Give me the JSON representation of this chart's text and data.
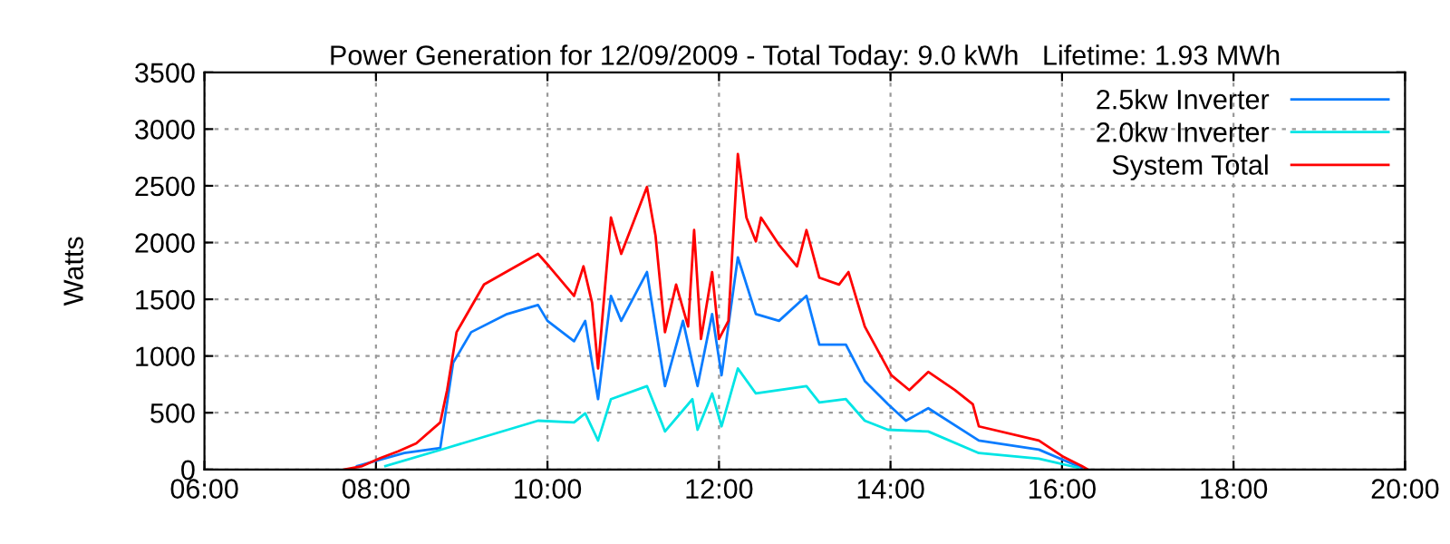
{
  "chart_data": {
    "type": "line",
    "title": "Power Generation for 12/09/2009 - Total Today: 9.0 kWh   Lifetime: 1.93 MWh",
    "ylabel": "Watts",
    "xlim": [
      6,
      20
    ],
    "xticks": [
      {
        "value": 6,
        "label": "06:00"
      },
      {
        "value": 8,
        "label": "08:00"
      },
      {
        "value": 10,
        "label": "10:00"
      },
      {
        "value": 12,
        "label": "12:00"
      },
      {
        "value": 14,
        "label": "14:00"
      },
      {
        "value": 16,
        "label": "16:00"
      },
      {
        "value": 18,
        "label": "18:00"
      },
      {
        "value": 20,
        "label": "20:00"
      }
    ],
    "ylim": [
      0,
      3500
    ],
    "yticks": [
      0,
      500,
      1000,
      1500,
      2000,
      2500,
      3000,
      3500
    ],
    "grid": true,
    "legend": "top right",
    "line_style": "solid",
    "marker": "none",
    "series": [
      {
        "name": "2.5kw Inverter",
        "color": "#0a7cff",
        "x": [
          7.78,
          8.33,
          8.75,
          8.9,
          9.11,
          9.53,
          9.89,
          10.0,
          10.31,
          10.44,
          10.59,
          10.74,
          10.86,
          11.16,
          11.37,
          11.58,
          11.75,
          11.92,
          12.03,
          12.22,
          12.43,
          12.7,
          13.02,
          13.17,
          13.48,
          13.7,
          13.97,
          14.18,
          14.44,
          15.03,
          15.73,
          16.23
        ],
        "values": [
          30,
          145,
          190,
          940,
          1210,
          1370,
          1450,
          1310,
          1130,
          1310,
          620,
          1530,
          1310,
          1740,
          735,
          1310,
          735,
          1370,
          830,
          1870,
          1370,
          1310,
          1530,
          1100,
          1100,
          780,
          575,
          430,
          540,
          255,
          175,
          15
        ]
      },
      {
        "name": "2.0kw Inverter",
        "color": "#00e5e5",
        "x": [
          8.11,
          8.83,
          9.89,
          10.31,
          10.44,
          10.59,
          10.74,
          11.16,
          11.33,
          11.37,
          11.69,
          11.75,
          11.92,
          12.03,
          12.22,
          12.43,
          13.02,
          13.17,
          13.48,
          13.7,
          13.97,
          14.44,
          15.03,
          15.73,
          16.19
        ],
        "values": [
          30,
          190,
          430,
          415,
          495,
          255,
          620,
          735,
          415,
          335,
          620,
          350,
          670,
          380,
          890,
          670,
          735,
          590,
          620,
          430,
          350,
          335,
          145,
          95,
          15
        ]
      },
      {
        "name": "System Total",
        "color": "#ff0000",
        "x": [
          7.63,
          7.84,
          8.05,
          8.26,
          8.47,
          8.75,
          8.83,
          8.94,
          9.26,
          9.89,
          10.02,
          10.31,
          10.42,
          10.52,
          10.59,
          10.74,
          10.86,
          11.16,
          11.26,
          11.37,
          11.5,
          11.64,
          11.71,
          11.79,
          11.92,
          12.0,
          12.11,
          12.22,
          12.32,
          12.43,
          12.49,
          12.7,
          12.91,
          13.02,
          13.17,
          13.4,
          13.51,
          13.7,
          14.01,
          14.22,
          14.44,
          14.75,
          14.96,
          15.03,
          15.73,
          16.02,
          16.23,
          16.3
        ],
        "values": [
          0,
          30,
          100,
          160,
          230,
          415,
          700,
          1210,
          1630,
          1900,
          1790,
          1530,
          1790,
          1470,
          890,
          2220,
          1900,
          2490,
          2060,
          1210,
          1630,
          1260,
          2110,
          1150,
          1740,
          1150,
          1310,
          2780,
          2220,
          2010,
          2220,
          1980,
          1790,
          2110,
          1690,
          1630,
          1740,
          1260,
          830,
          700,
          860,
          700,
          575,
          380,
          255,
          110,
          30,
          0
        ]
      }
    ]
  }
}
